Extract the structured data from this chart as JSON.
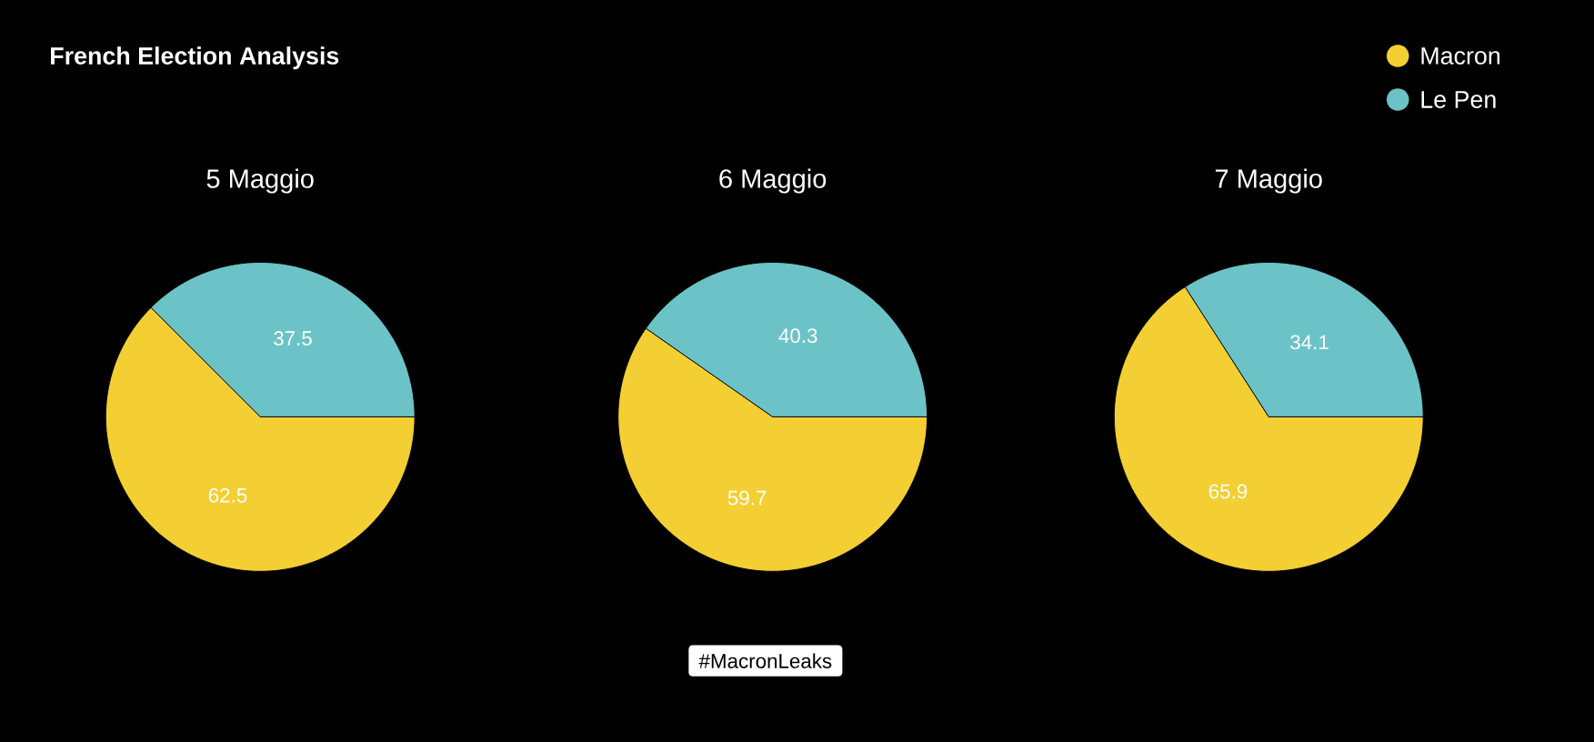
{
  "chart_data": [
    {
      "type": "other",
      "title": "French Election Analysis",
      "annotations": [
        "#MacronLeaks"
      ]
    },
    {
      "type": "pie",
      "title": "5 Maggio",
      "categories": [
        null,
        null
      ],
      "values": [
        62.5,
        37.5
      ],
      "colors": [
        "#f3cf33",
        "#6cc3c7"
      ],
      "data_labels": true
    },
    {
      "type": "pie",
      "title": "6 Maggio",
      "categories": [
        null,
        null
      ],
      "values": [
        59.7,
        40.3
      ],
      "colors": [
        "#f3cf33",
        "#6cc3c7"
      ],
      "data_labels": true
    },
    {
      "type": "pie",
      "title": "7 Maggio",
      "categories": [
        "Macron",
        "Le Pen"
      ],
      "values": [
        65.9,
        34.1
      ],
      "colors": [
        "#f3cf33",
        "#6cc3c7"
      ],
      "data_labels": true,
      "legend": "top right"
    }
  ]
}
